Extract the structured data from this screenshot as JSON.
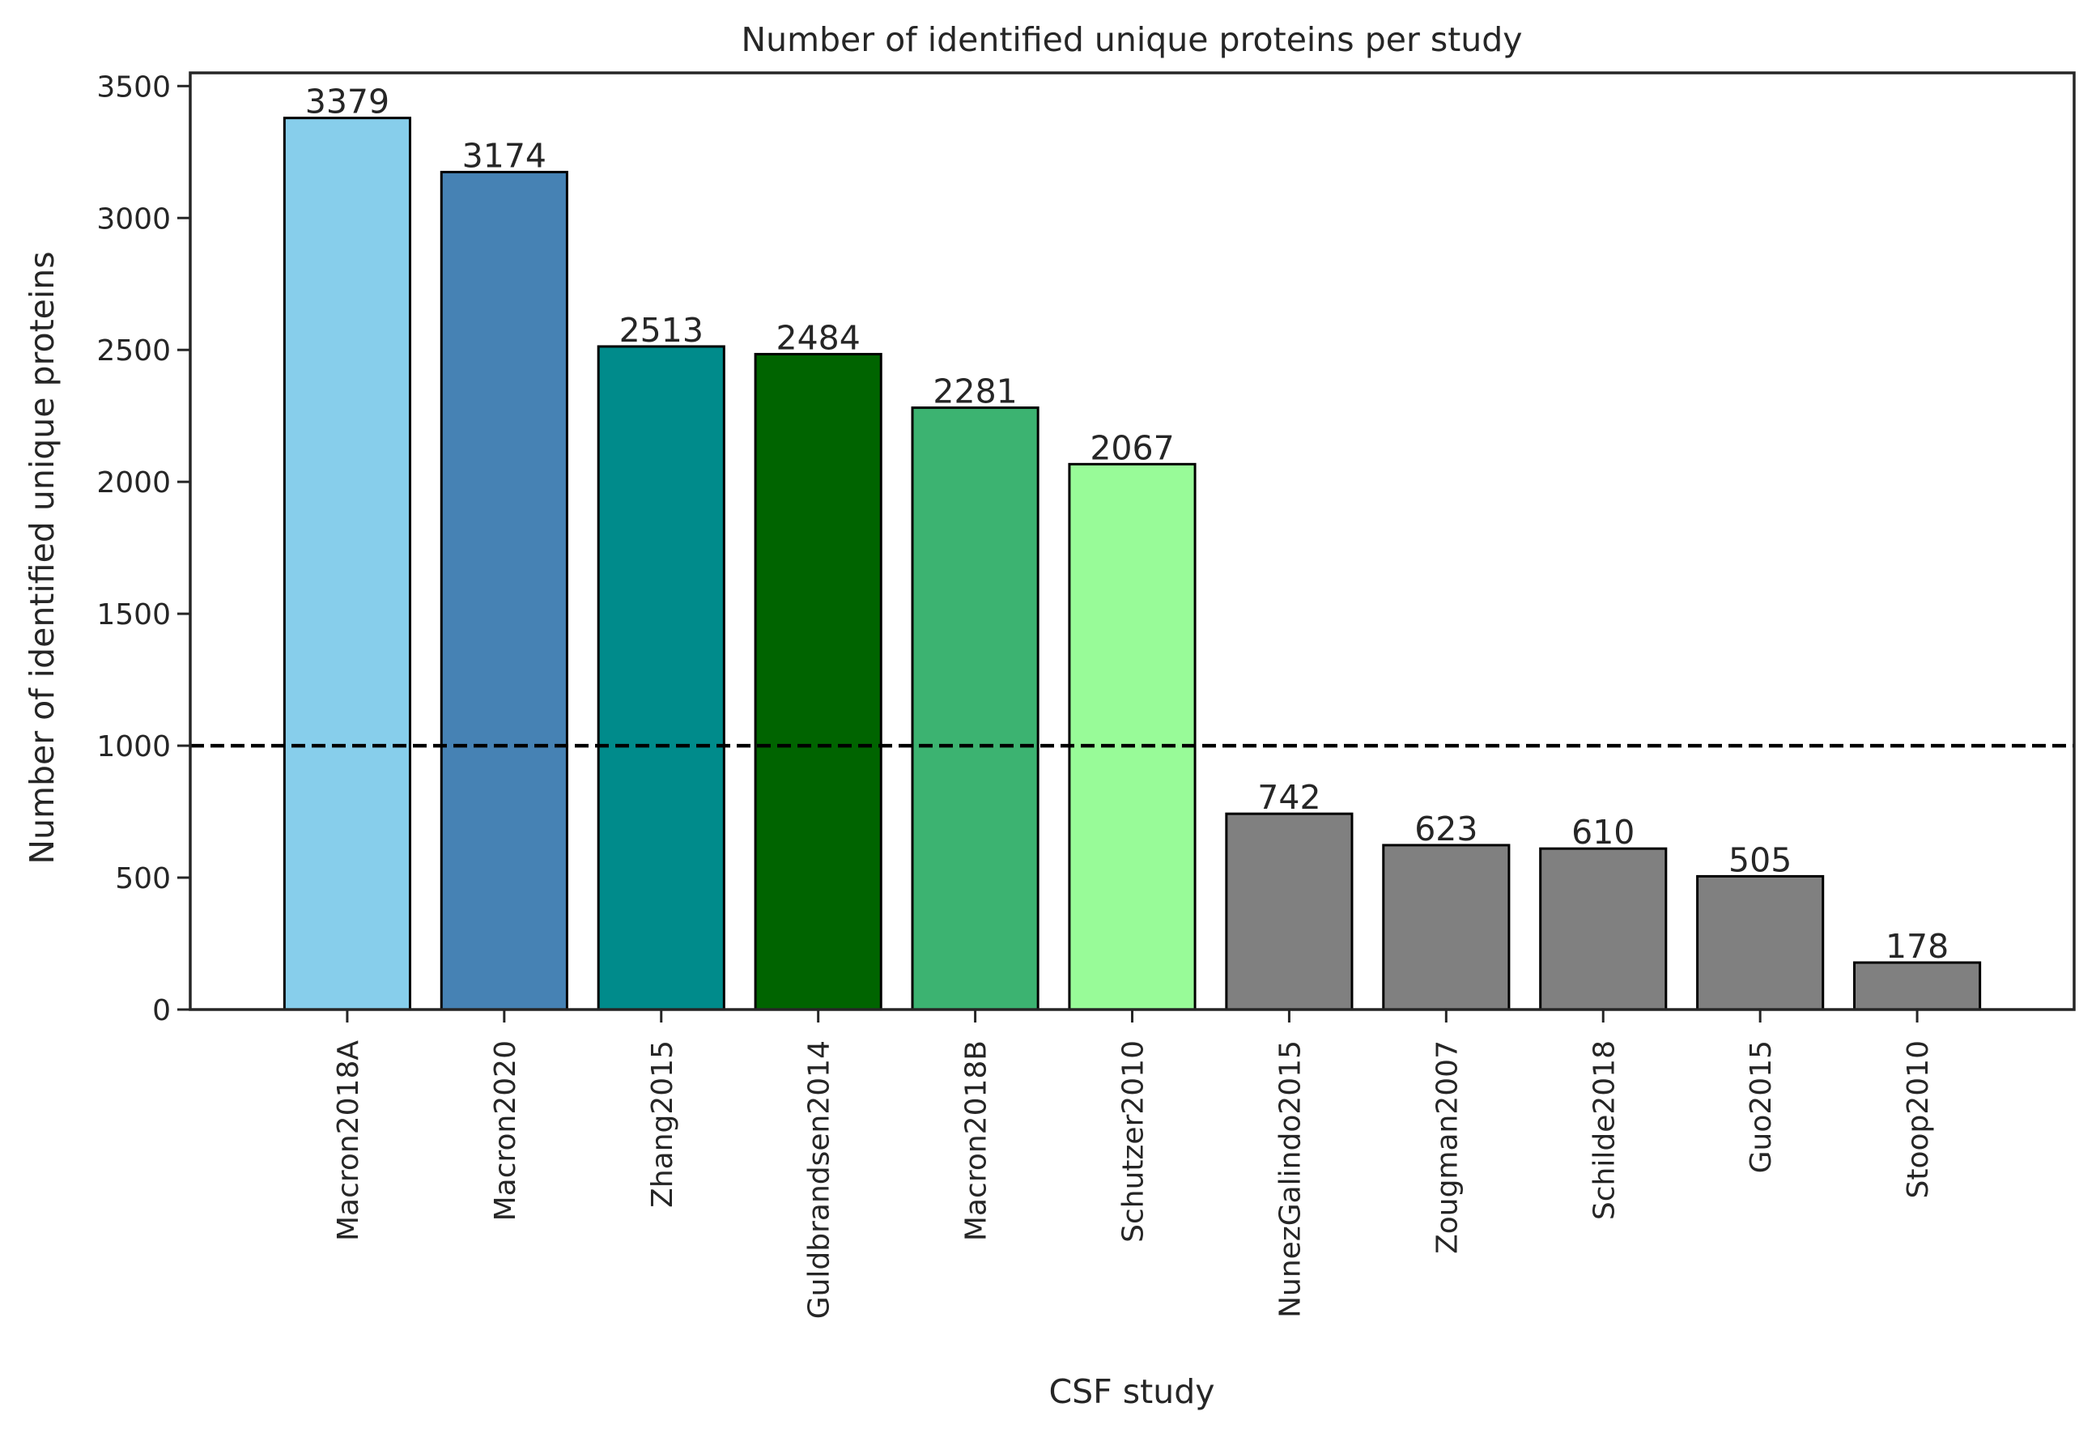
{
  "chart_data": {
    "type": "bar",
    "title": "Number of identified unique proteins per study",
    "xlabel": "CSF study",
    "ylabel": "Number of identified unique proteins",
    "categories": [
      "Macron2018A",
      "Macron2020",
      "Zhang2015",
      "Guldbrandsen2014",
      "Macron2018B",
      "Schutzer2010",
      "NunezGalindo2015",
      "Zougman2007",
      "Schilde2018",
      "Guo2015",
      "Stoop2010"
    ],
    "values": [
      3379,
      3174,
      2513,
      2484,
      2281,
      2067,
      742,
      623,
      610,
      505,
      178
    ],
    "colors": [
      "#87CEEB",
      "#4682B4",
      "#008B8B",
      "#006400",
      "#3CB371",
      "#98FB98",
      "#808080",
      "#808080",
      "#808080",
      "#808080",
      "#808080"
    ],
    "ylim": [
      0,
      3550
    ],
    "yticks": [
      0,
      500,
      1000,
      1500,
      2000,
      2500,
      3000,
      3500
    ],
    "reference_line": {
      "y": 1000,
      "style": "dashed",
      "color": "#000000"
    },
    "grid": false,
    "legend": false
  }
}
